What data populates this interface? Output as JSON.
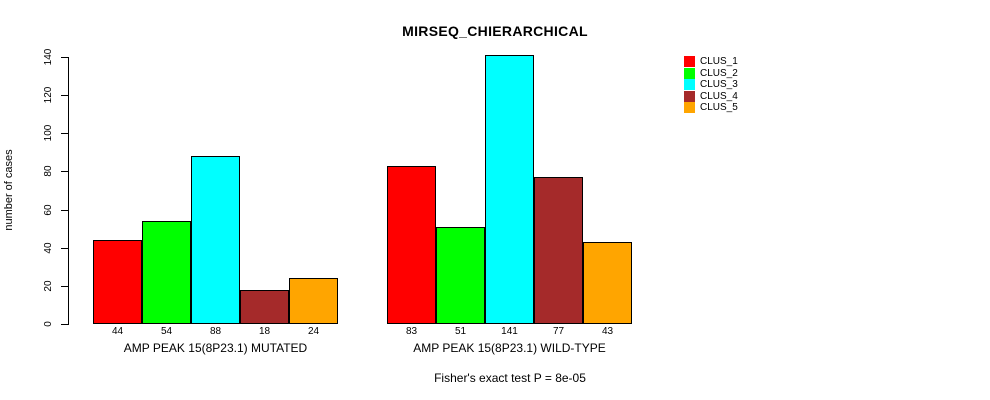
{
  "chart_data": {
    "type": "bar",
    "title": "MIRSEQ_CHIERARCHICAL",
    "ylabel": "number of cases",
    "xlabel": "",
    "ylim": [
      0,
      140
    ],
    "yticks": [
      0,
      20,
      40,
      60,
      80,
      100,
      120,
      140
    ],
    "grid": false,
    "legend_position": "right",
    "bar_value_labels_shown": true,
    "bar_border_color": "#000000",
    "series": [
      {
        "name": "CLUS_1",
        "color": "#FF0000"
      },
      {
        "name": "CLUS_2",
        "color": "#00FF00"
      },
      {
        "name": "CLUS_3",
        "color": "#00FFFF"
      },
      {
        "name": "CLUS_4",
        "color": "#A52A2A"
      },
      {
        "name": "CLUS_5",
        "color": "#FFA500"
      }
    ],
    "groups": [
      {
        "label": "AMP PEAK 15(8P23.1) MUTATED",
        "values": [
          44,
          54,
          88,
          18,
          24
        ]
      },
      {
        "label": "AMP PEAK 15(8P23.1) WILD-TYPE",
        "values": [
          83,
          51,
          141,
          77,
          43
        ]
      }
    ],
    "annotation": "Fisher's exact test P = 8e-05"
  }
}
